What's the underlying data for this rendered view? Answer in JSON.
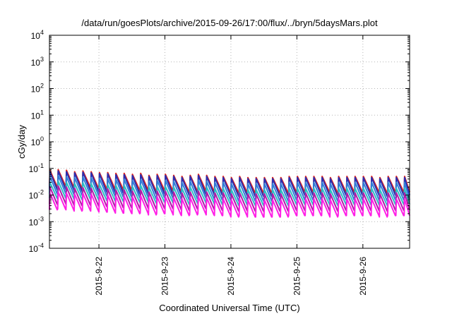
{
  "chart_data": {
    "type": "line",
    "title": "/data/run/goesPlots/archive/2015-09-26/17:00/flux/../bryn/5daysMars.plot",
    "xlabel": "Coordinated Universal Time (UTC)",
    "ylabel": "cGy/day",
    "yscale": "log",
    "ylim": [
      0.0001,
      10000
    ],
    "xlim": [
      "2015-09-21T06:00",
      "2015-09-26T17:00"
    ],
    "y_ticks": [
      {
        "base": "10",
        "exp": "-4"
      },
      {
        "base": "10",
        "exp": "-3"
      },
      {
        "base": "10",
        "exp": "-2"
      },
      {
        "base": "10",
        "exp": "-1"
      },
      {
        "base": "10",
        "exp": "0"
      },
      {
        "base": "10",
        "exp": "1"
      },
      {
        "base": "10",
        "exp": "2"
      },
      {
        "base": "10",
        "exp": "3"
      },
      {
        "base": "10",
        "exp": "4"
      }
    ],
    "x_ticks": [
      "2015-9-22",
      "2015-9-23",
      "2015-9-24",
      "2015-9-25",
      "2015-9-26"
    ],
    "grid": true,
    "legend": "none",
    "sawtooth_period_hours": 3,
    "series": [
      {
        "color": "#e0201c",
        "peak_values": [
          0.085,
          0.09,
          0.085,
          0.075,
          0.08,
          0.075,
          0.07,
          0.07,
          0.065,
          0.065,
          0.06,
          0.065,
          0.055,
          0.06,
          0.06,
          0.055,
          0.05,
          0.055,
          0.06,
          0.055,
          0.05,
          0.05,
          0.045,
          0.05,
          0.045,
          0.045,
          0.045,
          0.045,
          0.045,
          0.05,
          0.05,
          0.05,
          0.05,
          0.05,
          0.045,
          0.05,
          0.05,
          0.05,
          0.05,
          0.05,
          0.045,
          0.05,
          0.05,
          0.05,
          0.045
        ],
        "trough_values": [
          0.02,
          0.022,
          0.02,
          0.018,
          0.02,
          0.018,
          0.017,
          0.017,
          0.016,
          0.016,
          0.015,
          0.016,
          0.014,
          0.015,
          0.015,
          0.014,
          0.013,
          0.014,
          0.015,
          0.014,
          0.013,
          0.013,
          0.012,
          0.013,
          0.012,
          0.012,
          0.012,
          0.012,
          0.012,
          0.013,
          0.013,
          0.013,
          0.013,
          0.013,
          0.012,
          0.013,
          0.013,
          0.013,
          0.013,
          0.013,
          0.012,
          0.013,
          0.013,
          0.013,
          0.012
        ]
      },
      {
        "color": "#2a2fb0",
        "peak_values": [
          0.075,
          0.08,
          0.075,
          0.068,
          0.072,
          0.068,
          0.063,
          0.063,
          0.058,
          0.058,
          0.054,
          0.058,
          0.05,
          0.054,
          0.054,
          0.05,
          0.045,
          0.05,
          0.054,
          0.05,
          0.045,
          0.045,
          0.041,
          0.045,
          0.041,
          0.041,
          0.041,
          0.041,
          0.041,
          0.045,
          0.045,
          0.045,
          0.045,
          0.045,
          0.041,
          0.045,
          0.045,
          0.045,
          0.045,
          0.045,
          0.041,
          0.045,
          0.045,
          0.045,
          0.041
        ],
        "trough_values": [
          0.016,
          0.017,
          0.016,
          0.014,
          0.015,
          0.014,
          0.013,
          0.013,
          0.012,
          0.012,
          0.011,
          0.012,
          0.011,
          0.011,
          0.011,
          0.011,
          0.01,
          0.011,
          0.011,
          0.011,
          0.01,
          0.01,
          0.009,
          0.01,
          0.009,
          0.009,
          0.009,
          0.009,
          0.009,
          0.01,
          0.01,
          0.01,
          0.01,
          0.01,
          0.009,
          0.01,
          0.01,
          0.01,
          0.01,
          0.01,
          0.009,
          0.01,
          0.01,
          0.01,
          0.009
        ]
      },
      {
        "color": "#2f7fd8",
        "peak_values": [
          0.05,
          0.055,
          0.05,
          0.045,
          0.048,
          0.045,
          0.042,
          0.042,
          0.039,
          0.039,
          0.036,
          0.039,
          0.033,
          0.036,
          0.036,
          0.033,
          0.03,
          0.033,
          0.036,
          0.033,
          0.03,
          0.03,
          0.027,
          0.03,
          0.027,
          0.027,
          0.027,
          0.027,
          0.027,
          0.03,
          0.03,
          0.03,
          0.03,
          0.03,
          0.027,
          0.03,
          0.03,
          0.03,
          0.03,
          0.03,
          0.027,
          0.03,
          0.03,
          0.03,
          0.027
        ],
        "trough_values": [
          0.011,
          0.012,
          0.011,
          0.01,
          0.0105,
          0.01,
          0.0093,
          0.0093,
          0.0086,
          0.0086,
          0.008,
          0.0086,
          0.0073,
          0.008,
          0.008,
          0.0073,
          0.0066,
          0.0073,
          0.008,
          0.0073,
          0.0066,
          0.0066,
          0.006,
          0.0066,
          0.006,
          0.006,
          0.006,
          0.006,
          0.006,
          0.0066,
          0.0066,
          0.0066,
          0.0066,
          0.0066,
          0.006,
          0.0066,
          0.0066,
          0.0066,
          0.0066,
          0.0066,
          0.006,
          0.0066,
          0.0066,
          0.0066,
          0.006
        ]
      },
      {
        "color": "#2fbfc4",
        "peak_values": [
          0.03,
          0.033,
          0.03,
          0.027,
          0.029,
          0.027,
          0.025,
          0.025,
          0.023,
          0.023,
          0.021,
          0.023,
          0.02,
          0.021,
          0.021,
          0.02,
          0.018,
          0.02,
          0.021,
          0.02,
          0.018,
          0.018,
          0.016,
          0.018,
          0.016,
          0.016,
          0.016,
          0.016,
          0.016,
          0.018,
          0.018,
          0.018,
          0.018,
          0.018,
          0.016,
          0.018,
          0.018,
          0.018,
          0.018,
          0.018,
          0.016,
          0.018,
          0.018,
          0.018,
          0.016
        ],
        "trough_values": [
          0.0075,
          0.008,
          0.0075,
          0.0068,
          0.0072,
          0.0068,
          0.0063,
          0.0063,
          0.0058,
          0.0058,
          0.0054,
          0.0058,
          0.005,
          0.0054,
          0.0054,
          0.005,
          0.0045,
          0.005,
          0.0054,
          0.005,
          0.0045,
          0.0045,
          0.0041,
          0.0045,
          0.0041,
          0.0041,
          0.0041,
          0.0041,
          0.0041,
          0.0045,
          0.0045,
          0.0045,
          0.0045,
          0.0045,
          0.0041,
          0.0045,
          0.0045,
          0.0045,
          0.0045,
          0.0045,
          0.0041,
          0.0045,
          0.0045,
          0.0045,
          0.0041
        ]
      },
      {
        "color": "#b01aa8",
        "peak_values": [
          0.02,
          0.022,
          0.02,
          0.018,
          0.019,
          0.018,
          0.017,
          0.017,
          0.0155,
          0.0155,
          0.014,
          0.0155,
          0.013,
          0.014,
          0.014,
          0.013,
          0.012,
          0.013,
          0.014,
          0.013,
          0.012,
          0.012,
          0.011,
          0.012,
          0.011,
          0.011,
          0.011,
          0.011,
          0.011,
          0.012,
          0.012,
          0.012,
          0.012,
          0.012,
          0.011,
          0.012,
          0.012,
          0.012,
          0.012,
          0.012,
          0.011,
          0.012,
          0.012,
          0.012,
          0.011
        ],
        "trough_values": [
          0.0045,
          0.005,
          0.0045,
          0.004,
          0.0043,
          0.004,
          0.0037,
          0.0037,
          0.0034,
          0.0034,
          0.0032,
          0.0034,
          0.003,
          0.0032,
          0.0032,
          0.003,
          0.0027,
          0.003,
          0.0032,
          0.003,
          0.0027,
          0.0027,
          0.0025,
          0.0027,
          0.0025,
          0.0025,
          0.0025,
          0.0025,
          0.0025,
          0.0027,
          0.0027,
          0.0027,
          0.0027,
          0.0027,
          0.0025,
          0.0027,
          0.0027,
          0.0027,
          0.0027,
          0.0027,
          0.0025,
          0.0027,
          0.0027,
          0.0027,
          0.0025
        ]
      },
      {
        "color": "#ff1fe6",
        "peak_values": [
          0.012,
          0.013,
          0.012,
          0.011,
          0.0115,
          0.011,
          0.01,
          0.01,
          0.0093,
          0.0093,
          0.0086,
          0.0093,
          0.008,
          0.0086,
          0.0086,
          0.008,
          0.0072,
          0.008,
          0.0086,
          0.008,
          0.0072,
          0.0072,
          0.0066,
          0.0072,
          0.0066,
          0.0066,
          0.0066,
          0.0066,
          0.0066,
          0.0072,
          0.0072,
          0.0072,
          0.0072,
          0.0072,
          0.0066,
          0.0072,
          0.0072,
          0.0072,
          0.0072,
          0.0072,
          0.0066,
          0.0072,
          0.0072,
          0.0072,
          0.0066
        ],
        "trough_values": [
          0.0028,
          0.003,
          0.0028,
          0.0025,
          0.0027,
          0.0025,
          0.0023,
          0.0023,
          0.0021,
          0.0021,
          0.002,
          0.0021,
          0.0018,
          0.002,
          0.002,
          0.0018,
          0.0017,
          0.0018,
          0.002,
          0.0018,
          0.0017,
          0.0017,
          0.0015,
          0.0017,
          0.0015,
          0.0015,
          0.0015,
          0.0015,
          0.0015,
          0.0017,
          0.0017,
          0.0017,
          0.0017,
          0.0017,
          0.0015,
          0.0017,
          0.0017,
          0.0017,
          0.0017,
          0.0017,
          0.0015,
          0.0017,
          0.0017,
          0.0017,
          0.0015
        ]
      }
    ]
  }
}
